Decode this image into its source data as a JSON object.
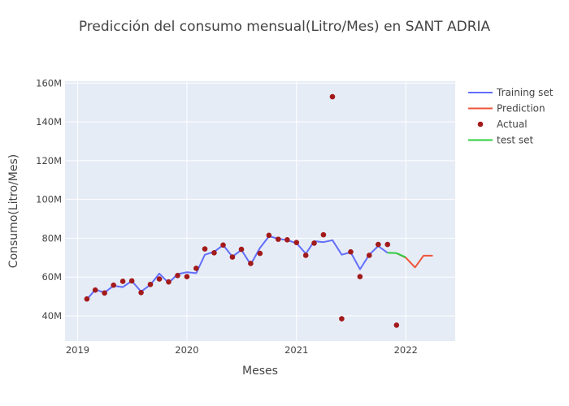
{
  "chart_data": {
    "type": "line",
    "title": "Predicción del consumo mensual(Litro/Mes) en SANT ADRIA",
    "xlabel": "Meses",
    "ylabel": "Consumo(Litro/Mes)",
    "x_range": [
      "2018-11-20",
      "2022-06-15"
    ],
    "y_range": [
      27,
      161
    ],
    "x_ticks": [
      {
        "label": "2019",
        "date": "2019-01-01"
      },
      {
        "label": "2020",
        "date": "2020-01-01"
      },
      {
        "label": "2021",
        "date": "2021-01-01"
      },
      {
        "label": "2022",
        "date": "2022-01-01"
      }
    ],
    "y_ticks": [
      {
        "label": "40M",
        "value": 40
      },
      {
        "label": "60M",
        "value": 60
      },
      {
        "label": "80M",
        "value": 80
      },
      {
        "label": "100M",
        "value": 100
      },
      {
        "label": "120M",
        "value": 120
      },
      {
        "label": "140M",
        "value": 140
      },
      {
        "label": "160M",
        "value": 160
      }
    ],
    "y_unit": "millions",
    "grid": true,
    "legend_position": "top-right",
    "series": [
      {
        "name": "Training set",
        "mode": "line",
        "color": "#636efa",
        "points": [
          {
            "x": "2019-02-01",
            "y": 48.5
          },
          {
            "x": "2019-03-01",
            "y": 53.5
          },
          {
            "x": "2019-04-01",
            "y": 52.0
          },
          {
            "x": "2019-05-01",
            "y": 55.5
          },
          {
            "x": "2019-06-01",
            "y": 54.8
          },
          {
            "x": "2019-07-01",
            "y": 58.0
          },
          {
            "x": "2019-08-01",
            "y": 52.5
          },
          {
            "x": "2019-09-01",
            "y": 56.0
          },
          {
            "x": "2019-10-01",
            "y": 61.8
          },
          {
            "x": "2019-11-01",
            "y": 57.0
          },
          {
            "x": "2019-12-01",
            "y": 61.5
          },
          {
            "x": "2020-01-01",
            "y": 62.5
          },
          {
            "x": "2020-02-01",
            "y": 62.0
          },
          {
            "x": "2020-03-01",
            "y": 71.5
          },
          {
            "x": "2020-04-01",
            "y": 73.0
          },
          {
            "x": "2020-05-01",
            "y": 76.5
          },
          {
            "x": "2020-06-01",
            "y": 70.5
          },
          {
            "x": "2020-07-01",
            "y": 74.0
          },
          {
            "x": "2020-08-01",
            "y": 66.5
          },
          {
            "x": "2020-09-01",
            "y": 75.0
          },
          {
            "x": "2020-10-01",
            "y": 81.0
          },
          {
            "x": "2020-11-01",
            "y": 79.8
          },
          {
            "x": "2020-12-01",
            "y": 79.0
          },
          {
            "x": "2021-01-01",
            "y": 77.5
          },
          {
            "x": "2021-02-01",
            "y": 72.0
          },
          {
            "x": "2021-03-01",
            "y": 78.5
          },
          {
            "x": "2021-04-01",
            "y": 78.0
          },
          {
            "x": "2021-05-01",
            "y": 79.0
          },
          {
            "x": "2021-06-01",
            "y": 71.5
          },
          {
            "x": "2021-07-01",
            "y": 72.8
          },
          {
            "x": "2021-08-01",
            "y": 64.0
          },
          {
            "x": "2021-09-01",
            "y": 71.5
          },
          {
            "x": "2021-10-01",
            "y": 76.0
          },
          {
            "x": "2021-11-01",
            "y": 72.5
          }
        ]
      },
      {
        "name": "Prediction",
        "mode": "line",
        "color": "#ef553b",
        "points": [
          {
            "x": "2021-12-01",
            "y": 72.3
          },
          {
            "x": "2022-01-01",
            "y": 70.0
          },
          {
            "x": "2022-02-01",
            "y": 65.0
          },
          {
            "x": "2022-03-01",
            "y": 71.0
          },
          {
            "x": "2022-04-01",
            "y": 71.0
          }
        ]
      },
      {
        "name": "Actual",
        "mode": "markers",
        "color": "#a31a1a",
        "points": [
          {
            "x": "2019-02-01",
            "y": 48.7
          },
          {
            "x": "2019-03-01",
            "y": 53.3
          },
          {
            "x": "2019-04-01",
            "y": 51.8
          },
          {
            "x": "2019-05-01",
            "y": 55.8
          },
          {
            "x": "2019-06-01",
            "y": 57.8
          },
          {
            "x": "2019-07-01",
            "y": 58.0
          },
          {
            "x": "2019-08-01",
            "y": 52.0
          },
          {
            "x": "2019-09-01",
            "y": 56.2
          },
          {
            "x": "2019-10-01",
            "y": 59.0
          },
          {
            "x": "2019-11-01",
            "y": 57.5
          },
          {
            "x": "2019-12-01",
            "y": 60.8
          },
          {
            "x": "2020-01-01",
            "y": 60.2
          },
          {
            "x": "2020-02-01",
            "y": 64.5
          },
          {
            "x": "2020-03-01",
            "y": 74.5
          },
          {
            "x": "2020-04-01",
            "y": 72.5
          },
          {
            "x": "2020-05-01",
            "y": 76.5
          },
          {
            "x": "2020-06-01",
            "y": 70.3
          },
          {
            "x": "2020-07-01",
            "y": 74.3
          },
          {
            "x": "2020-08-01",
            "y": 67.0
          },
          {
            "x": "2020-09-01",
            "y": 72.2
          },
          {
            "x": "2020-10-01",
            "y": 81.5
          },
          {
            "x": "2020-11-01",
            "y": 79.5
          },
          {
            "x": "2020-12-01",
            "y": 79.2
          },
          {
            "x": "2021-01-01",
            "y": 77.8
          },
          {
            "x": "2021-02-01",
            "y": 71.2
          },
          {
            "x": "2021-03-01",
            "y": 77.5
          },
          {
            "x": "2021-04-01",
            "y": 81.8
          },
          {
            "x": "2021-05-01",
            "y": 153.0
          },
          {
            "x": "2021-06-01",
            "y": 38.5
          },
          {
            "x": "2021-07-01",
            "y": 73.0
          },
          {
            "x": "2021-08-01",
            "y": 60.2
          },
          {
            "x": "2021-09-01",
            "y": 71.2
          },
          {
            "x": "2021-10-01",
            "y": 76.8
          },
          {
            "x": "2021-11-01",
            "y": 76.8
          },
          {
            "x": "2021-12-01",
            "y": 35.2
          }
        ]
      },
      {
        "name": "test set",
        "mode": "line",
        "color": "#2ecc40",
        "points": [
          {
            "x": "2021-11-01",
            "y": 72.5
          },
          {
            "x": "2021-12-01",
            "y": 72.3
          },
          {
            "x": "2022-01-01",
            "y": 70.2
          }
        ]
      }
    ]
  }
}
